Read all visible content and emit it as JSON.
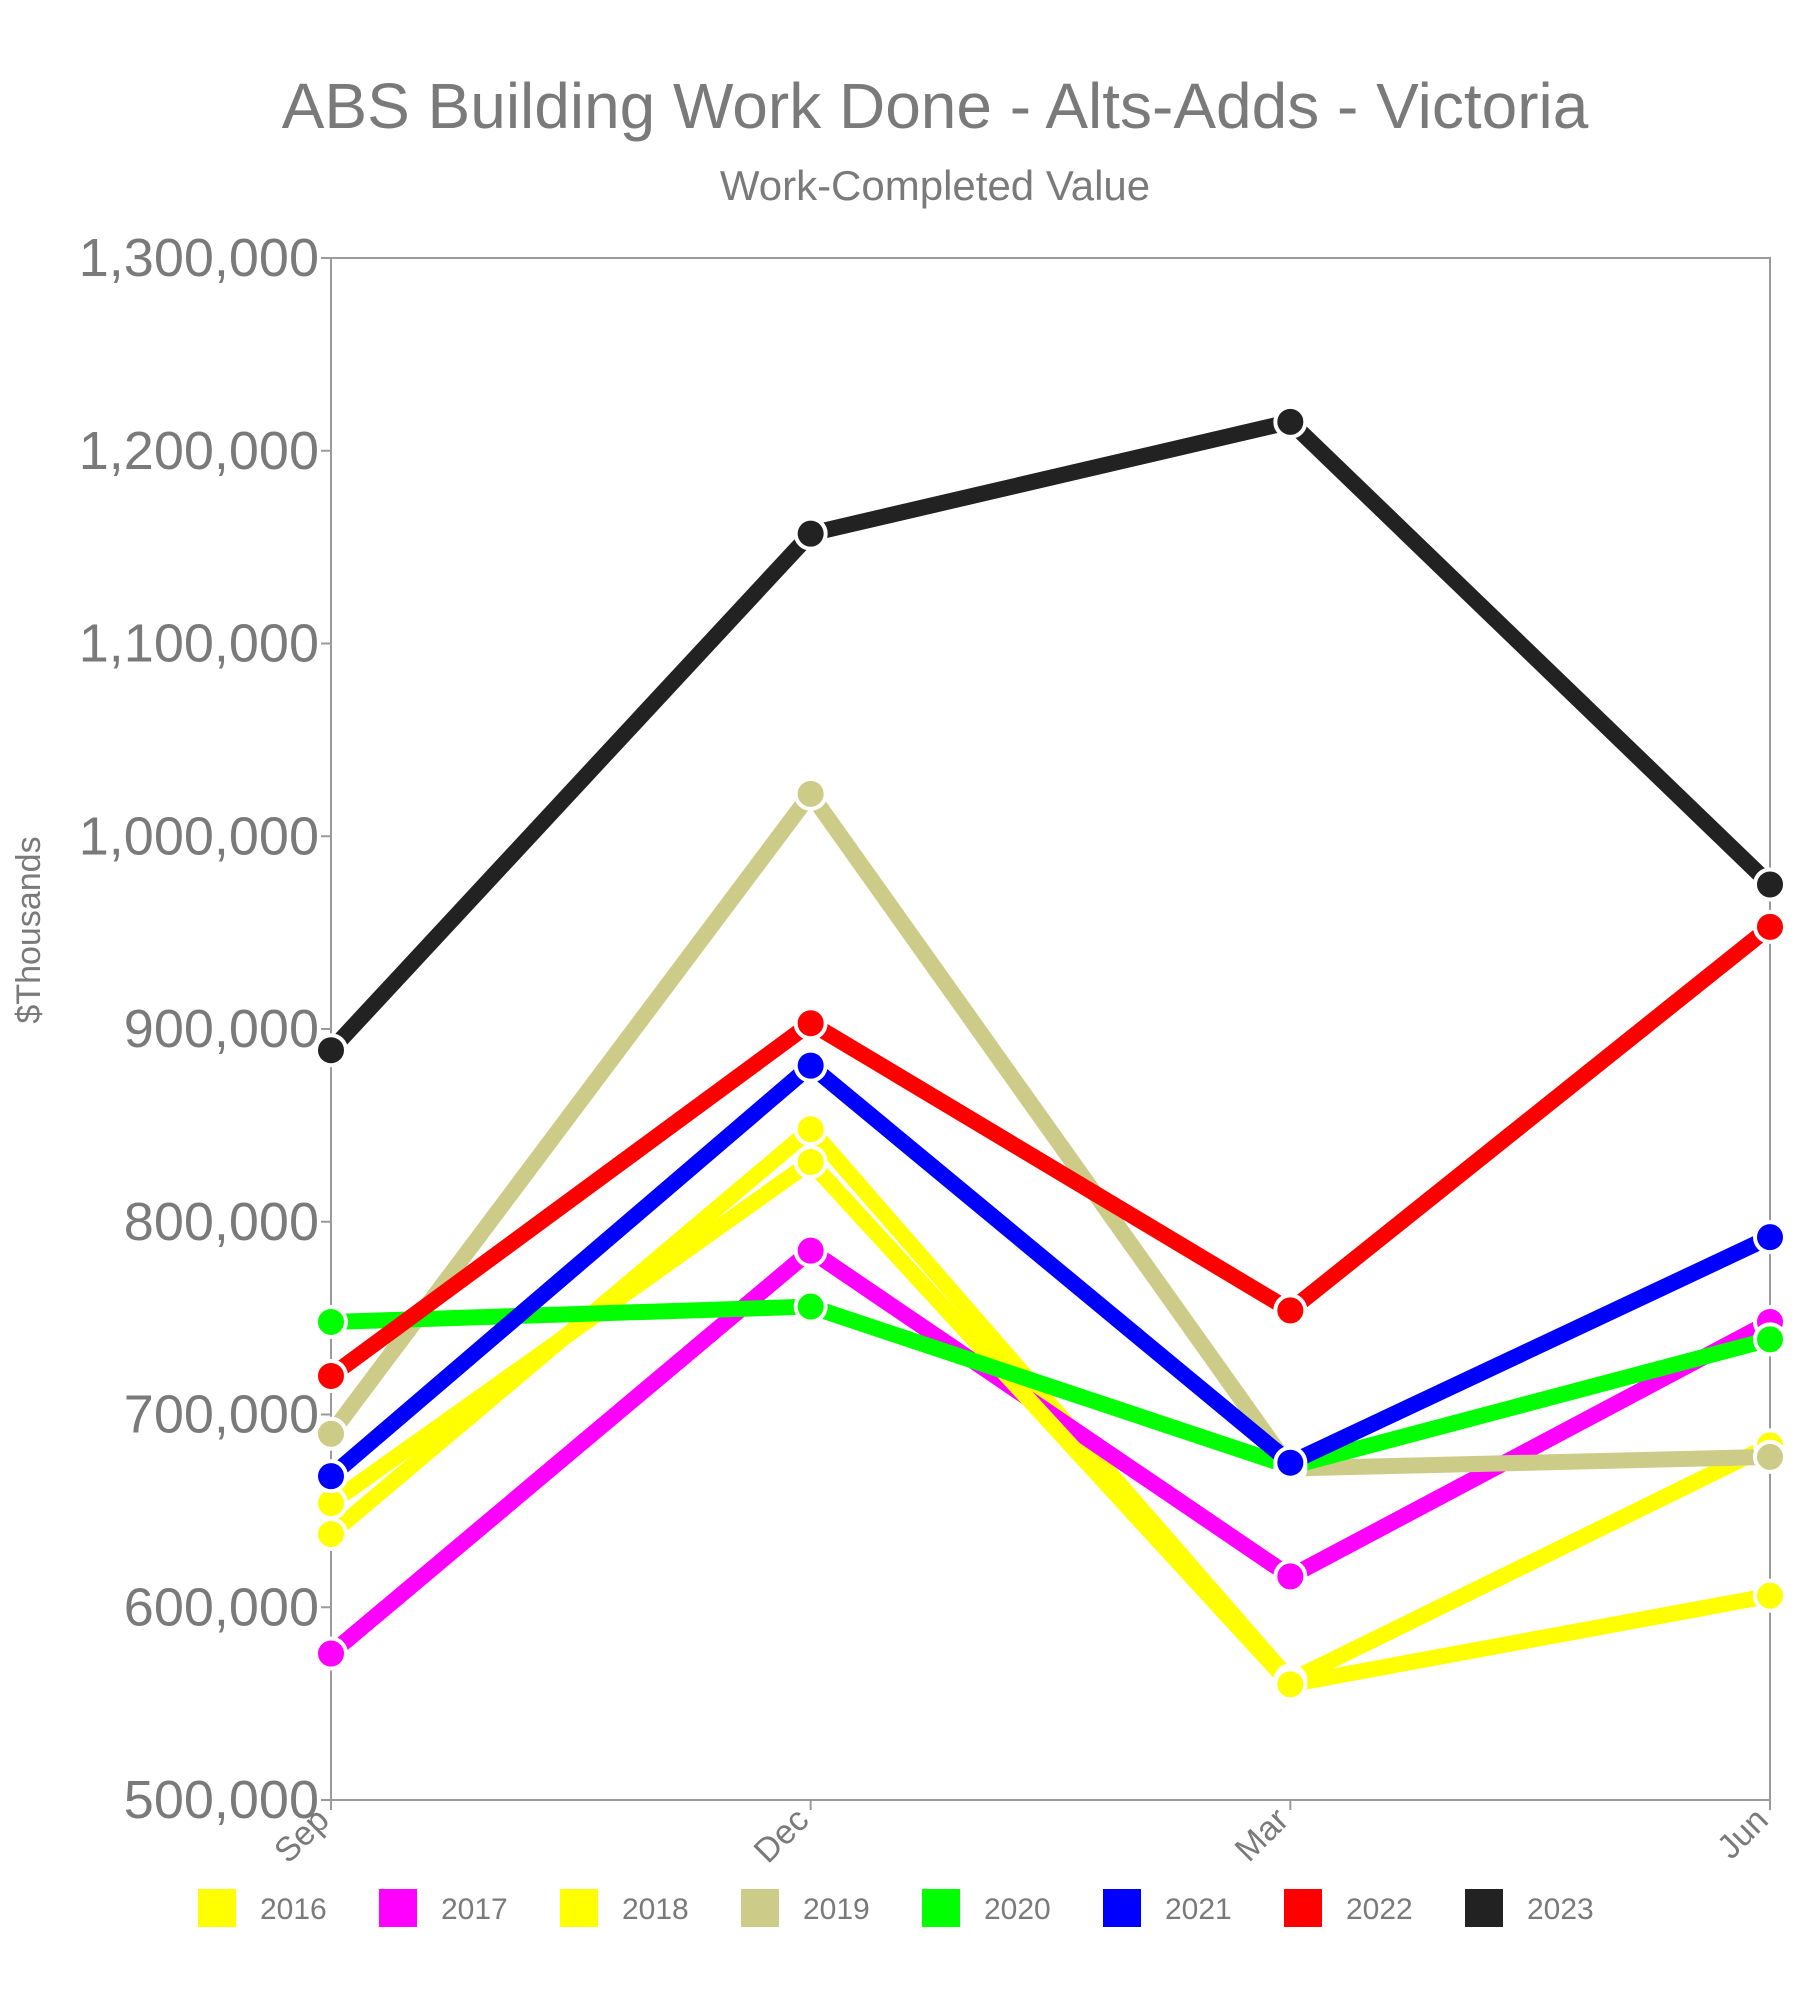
{
  "chart_data": {
    "type": "line",
    "title": "ABS Building Work Done - Alts-Adds - Victoria",
    "subtitle": "Work-Completed Value",
    "xlabel": "",
    "ylabel": "$Thousands",
    "categories": [
      "Sep",
      "Dec",
      "Mar",
      "Jun"
    ],
    "ylim": [
      500000,
      1300000
    ],
    "yticks": [
      500000,
      600000,
      700000,
      800000,
      900000,
      1000000,
      1100000,
      1200000,
      1300000
    ],
    "ytick_labels": [
      "500,000",
      "600,000",
      "700,000",
      "800,000",
      "900,000",
      "1,000,000",
      "1,100,000",
      "1,200,000",
      "1,300,000"
    ],
    "legend_position": "bottom",
    "grid": false,
    "series": [
      {
        "name": "2016",
        "color": "#ffff00",
        "values": [
          638000,
          848000,
          562000,
          684000
        ]
      },
      {
        "name": "2017",
        "color": "#ff00ff",
        "values": [
          576000,
          785000,
          616000,
          748000
        ]
      },
      {
        "name": "2018",
        "color": "#ffff00",
        "values": [
          654000,
          831000,
          560000,
          606000
        ]
      },
      {
        "name": "2019",
        "color": "#cccc88",
        "values": [
          690000,
          1022000,
          672000,
          678000
        ]
      },
      {
        "name": "2020",
        "color": "#00ff00",
        "values": [
          748000,
          756000,
          673000,
          739000
        ]
      },
      {
        "name": "2021",
        "color": "#0000ff",
        "values": [
          668000,
          881000,
          675000,
          792000
        ]
      },
      {
        "name": "2022",
        "color": "#ff0000",
        "values": [
          720000,
          903000,
          754000,
          953000
        ]
      },
      {
        "name": "2023",
        "color": "#222222",
        "values": [
          889000,
          1157000,
          1215000,
          975000
        ]
      }
    ]
  }
}
